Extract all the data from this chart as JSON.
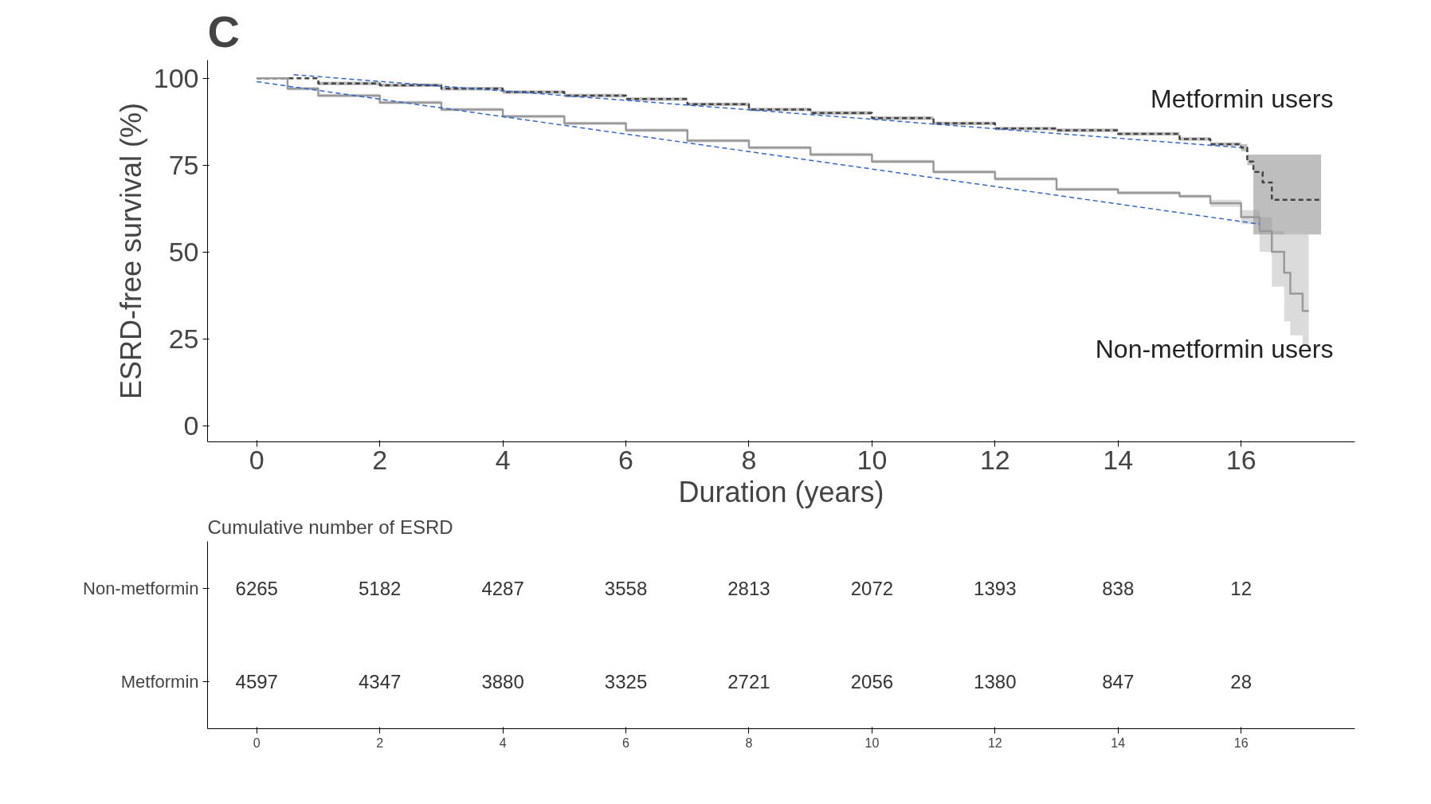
{
  "chart_data": [
    {
      "type": "step",
      "title": "C",
      "xlabel": "Duration (years)",
      "ylabel": "ESRD-free survival (%)",
      "xlim": [
        -0.8,
        17.85
      ],
      "ylim": [
        -4.7,
        105.2
      ],
      "xticks": [
        0,
        2,
        4,
        6,
        8,
        10,
        12,
        14,
        16
      ],
      "yticks": [
        0,
        25,
        50,
        75,
        100
      ],
      "grid": false,
      "series": [
        {
          "name": "Metformin users",
          "color": "#444444",
          "line_style": "dashed",
          "x": [
            0,
            1,
            2,
            3,
            4,
            5,
            6,
            7,
            8,
            9,
            10,
            11,
            12,
            13,
            14,
            15,
            15.5,
            16,
            16.1,
            16.2,
            16.35,
            16.5,
            17.3
          ],
          "values": [
            100,
            98.5,
            98,
            97,
            96,
            95,
            94,
            92.5,
            91,
            90,
            88.5,
            87,
            85.5,
            85,
            84,
            82.5,
            81,
            80,
            76,
            73,
            70,
            65,
            65
          ],
          "lower": [
            100,
            98,
            97.5,
            96.5,
            95.5,
            94.5,
            93.5,
            92,
            90.5,
            89.5,
            88,
            86.5,
            85,
            84.5,
            83.5,
            82,
            80.5,
            79,
            75,
            55,
            55,
            55,
            55
          ],
          "upper": [
            100,
            99,
            98.5,
            97.5,
            96.5,
            95.5,
            94.5,
            93,
            91.5,
            90.5,
            89,
            87.5,
            86,
            85.5,
            84.5,
            83,
            81.5,
            81,
            78,
            78,
            78,
            78,
            78
          ]
        },
        {
          "name": "Non-metformin users",
          "color": "#999999",
          "line_style": "solid",
          "x": [
            0,
            0.5,
            1,
            2,
            3,
            4,
            5,
            6,
            7,
            8,
            9,
            10,
            11,
            12,
            13,
            14,
            15,
            15.5,
            16,
            16.3,
            16.5,
            16.7,
            16.8,
            17,
            17.1
          ],
          "values": [
            100,
            97,
            95,
            93,
            91,
            89,
            87,
            85,
            82,
            80,
            78,
            76,
            73,
            71,
            68,
            67,
            66,
            64,
            60,
            56,
            50,
            44,
            38,
            33,
            33
          ],
          "lower": [
            100,
            96.5,
            94.5,
            92.5,
            90.5,
            88.5,
            86.5,
            84.5,
            81.5,
            79.5,
            77.5,
            75.5,
            72.5,
            70.5,
            67.5,
            66.5,
            65.5,
            63,
            58,
            50,
            40,
            30,
            26,
            23,
            23
          ],
          "upper": [
            100,
            97.5,
            95.5,
            93.5,
            91.5,
            89.5,
            87.5,
            85.5,
            82.5,
            80.5,
            78.5,
            76.5,
            73.5,
            71.5,
            68.5,
            67.5,
            66.5,
            65,
            62,
            60,
            56,
            55,
            55,
            55,
            55
          ]
        },
        {
          "type": "line",
          "color": "#3366cc",
          "line_style": "dashed",
          "x": [
            0.6,
            16
          ],
          "values": [
            101,
            80
          ]
        },
        {
          "type": "line",
          "color": "#3366cc",
          "line_style": "dashed",
          "x": [
            0,
            16.3
          ],
          "values": [
            99,
            58
          ]
        }
      ]
    },
    {
      "type": "heatmap",
      "data_labels": true,
      "title": "Cumulative number of ESRD",
      "categories": [
        "0",
        "2",
        "4",
        "6",
        "8",
        "10",
        "12",
        "14",
        "16"
      ],
      "y_categories": [
        "Non-metformin",
        "Metformin"
      ],
      "cells": [
        [
          6265,
          5182,
          4287,
          3558,
          2813,
          2072,
          1393,
          838,
          12
        ],
        [
          4597,
          4347,
          3880,
          3325,
          2721,
          2056,
          1380,
          847,
          28
        ]
      ]
    }
  ]
}
